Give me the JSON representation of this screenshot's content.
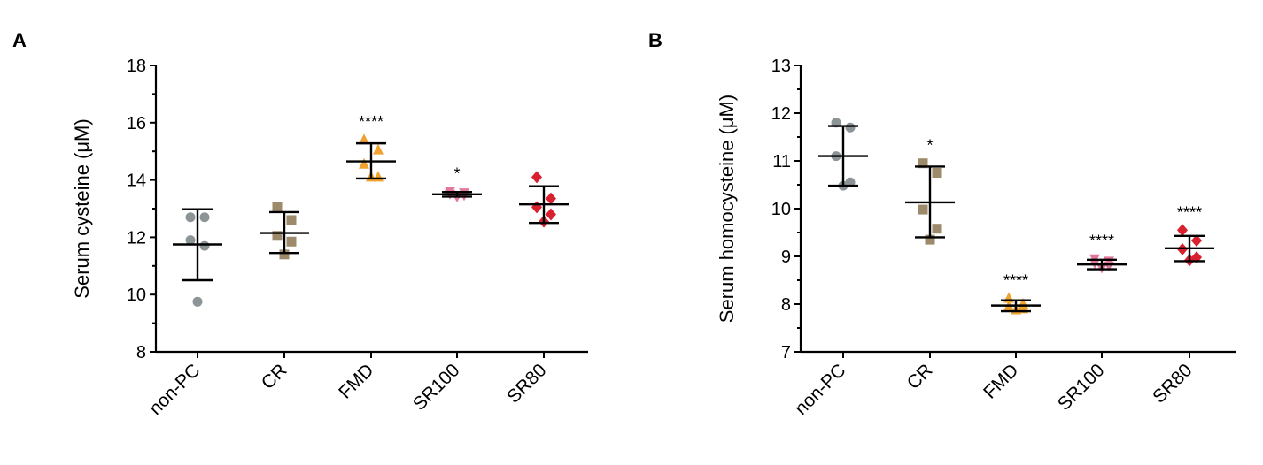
{
  "chart_data": [
    {
      "panel_label": "A",
      "type": "scatter",
      "ylabel": "Serum cysteine (μM)",
      "ylim": [
        8,
        18
      ],
      "yticks": [
        8,
        10,
        12,
        14,
        16,
        18
      ],
      "yticks_label": [
        "8",
        "10",
        "12",
        "14",
        "16",
        "18"
      ],
      "categories": [
        "non-PC",
        "CR",
        "FMD",
        "SR100",
        "SR80"
      ],
      "groups": [
        {
          "name": "non-PC",
          "marker": "circle",
          "color": "#8c9497",
          "points": [
            12.7,
            12.7,
            11.9,
            11.7,
            9.75
          ],
          "mean": 11.75,
          "sd_low": 10.5,
          "sd_high": 12.98,
          "significance": ""
        },
        {
          "name": "CR",
          "marker": "square",
          "color": "#9c8a6b",
          "points": [
            13.05,
            12.6,
            12.05,
            11.85,
            11.4
          ],
          "mean": 12.15,
          "sd_low": 11.45,
          "sd_high": 12.88,
          "significance": ""
        },
        {
          "name": "FMD",
          "marker": "triangle-up",
          "color": "#f0a22e",
          "points": [
            15.4,
            15.05,
            14.55,
            14.1,
            14.1
          ],
          "mean": 14.65,
          "sd_low": 14.05,
          "sd_high": 15.28,
          "significance": "****"
        },
        {
          "name": "SR100",
          "marker": "triangle-down",
          "color": "#e3779d",
          "points": [
            13.6,
            13.55,
            13.5,
            13.45,
            13.4
          ],
          "mean": 13.5,
          "sd_low": 13.42,
          "sd_high": 13.58,
          "significance": "*"
        },
        {
          "name": "SR80",
          "marker": "diamond",
          "color": "#d9202f",
          "points": [
            14.1,
            13.35,
            13.05,
            12.8,
            12.55
          ],
          "mean": 13.15,
          "sd_low": 12.5,
          "sd_high": 13.78,
          "significance": ""
        }
      ]
    },
    {
      "panel_label": "B",
      "type": "scatter",
      "ylabel": "Serum homocysteine (μM)",
      "ylim": [
        7,
        13
      ],
      "yticks": [
        7,
        8,
        9,
        10,
        11,
        12,
        13
      ],
      "yticks_label": [
        "7",
        "8",
        "9",
        "10",
        "11",
        "12",
        "13"
      ],
      "categories": [
        "non-PC",
        "CR",
        "FMD",
        "SR100",
        "SR80"
      ],
      "groups": [
        {
          "name": "non-PC",
          "marker": "circle",
          "color": "#8c9497",
          "points": [
            11.8,
            11.7,
            11.1,
            10.55,
            10.48
          ],
          "mean": 11.1,
          "sd_low": 10.48,
          "sd_high": 11.73,
          "significance": ""
        },
        {
          "name": "CR",
          "marker": "square",
          "color": "#9c8a6b",
          "points": [
            10.95,
            10.75,
            9.98,
            9.58,
            9.35
          ],
          "mean": 10.13,
          "sd_low": 9.4,
          "sd_high": 10.88,
          "significance": "*"
        },
        {
          "name": "FMD",
          "marker": "triangle-up",
          "color": "#f0a22e",
          "points": [
            8.12,
            8.0,
            7.95,
            7.9,
            7.88
          ],
          "mean": 7.97,
          "sd_low": 7.85,
          "sd_high": 8.08,
          "significance": "****"
        },
        {
          "name": "SR100",
          "marker": "triangle-down",
          "color": "#e3779d",
          "points": [
            8.95,
            8.9,
            8.85,
            8.8,
            8.75
          ],
          "mean": 8.83,
          "sd_low": 8.73,
          "sd_high": 8.93,
          "significance": "****"
        },
        {
          "name": "SR80",
          "marker": "diamond",
          "color": "#d9202f",
          "points": [
            9.55,
            9.33,
            9.15,
            8.98,
            8.92
          ],
          "mean": 9.17,
          "sd_low": 8.9,
          "sd_high": 9.43,
          "significance": "****"
        }
      ]
    }
  ]
}
